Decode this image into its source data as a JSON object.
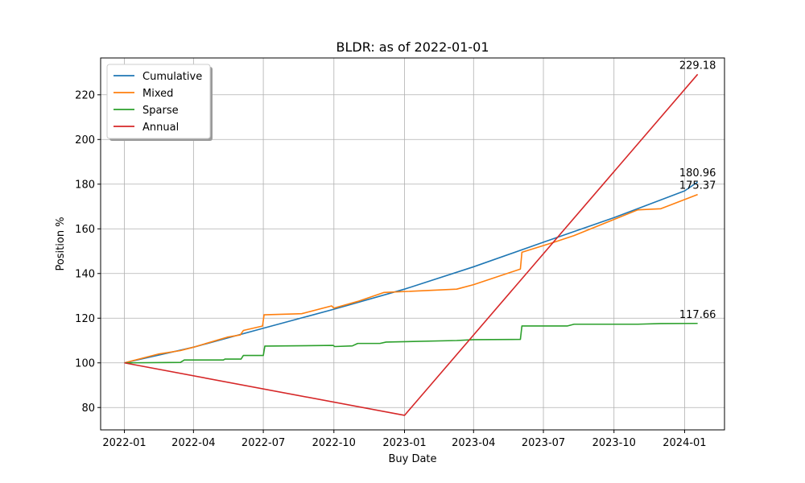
{
  "chart_data": {
    "type": "line",
    "title": "BLDR: as of 2022-01-01",
    "xlabel": "Buy Date",
    "ylabel": "Position %",
    "xlim": [
      "2021-12-01",
      "2024-02-22"
    ],
    "ylim": [
      70,
      236.5
    ],
    "x_ticks": [
      "2022-01",
      "2022-04",
      "2022-07",
      "2022-10",
      "2023-01",
      "2023-04",
      "2023-07",
      "2023-10",
      "2024-01"
    ],
    "y_ticks": [
      80,
      100,
      120,
      140,
      160,
      180,
      200,
      220
    ],
    "grid": true,
    "legend_position": "top-left",
    "series": [
      {
        "name": "Cumulative",
        "color": "#1f77b4",
        "points": [
          [
            "2022-01-01",
            100
          ],
          [
            "2022-04-01",
            107
          ],
          [
            "2022-07-01",
            115.5
          ],
          [
            "2022-10-01",
            124
          ],
          [
            "2023-01-01",
            133
          ],
          [
            "2023-04-01",
            143
          ],
          [
            "2023-07-01",
            154
          ],
          [
            "2023-10-01",
            165
          ],
          [
            "2024-01-01",
            177
          ],
          [
            "2024-01-18",
            180.96
          ]
        ],
        "end_label": "180.96"
      },
      {
        "name": "Mixed",
        "color": "#ff7f0e",
        "points": [
          [
            "2022-01-01",
            100
          ],
          [
            "2022-02-15",
            104
          ],
          [
            "2022-03-15",
            105.5
          ],
          [
            "2022-04-01",
            107
          ],
          [
            "2022-05-15",
            111.5
          ],
          [
            "2022-06-01",
            112.5
          ],
          [
            "2022-06-05",
            114.5
          ],
          [
            "2022-06-30",
            116.5
          ],
          [
            "2022-07-02",
            121.5
          ],
          [
            "2022-08-20",
            122
          ],
          [
            "2022-09-28",
            125.5
          ],
          [
            "2022-10-01",
            124.5
          ],
          [
            "2022-11-01",
            127.5
          ],
          [
            "2022-12-05",
            131.5
          ],
          [
            "2023-03-10",
            133
          ],
          [
            "2023-04-01",
            135
          ],
          [
            "2023-06-01",
            142
          ],
          [
            "2023-06-03",
            149.5
          ],
          [
            "2023-07-15",
            154
          ],
          [
            "2023-08-10",
            157
          ],
          [
            "2023-11-01",
            168.5
          ],
          [
            "2023-12-01",
            169
          ],
          [
            "2024-01-18",
            175.37
          ]
        ],
        "end_label": "175.37"
      },
      {
        "name": "Sparse",
        "color": "#2ca02c",
        "points": [
          [
            "2022-01-01",
            100
          ],
          [
            "2022-03-15",
            100.2
          ],
          [
            "2022-03-20",
            101.3
          ],
          [
            "2022-05-10",
            101.3
          ],
          [
            "2022-05-12",
            101.7
          ],
          [
            "2022-06-02",
            101.7
          ],
          [
            "2022-06-05",
            103.3
          ],
          [
            "2022-07-01",
            103.3
          ],
          [
            "2022-07-03",
            107.5
          ],
          [
            "2022-09-30",
            107.8
          ],
          [
            "2022-10-02",
            107.3
          ],
          [
            "2022-10-25",
            107.6
          ],
          [
            "2022-11-01",
            108.7
          ],
          [
            "2022-11-30",
            108.7
          ],
          [
            "2022-12-08",
            109.3
          ],
          [
            "2023-03-10",
            110
          ],
          [
            "2023-04-01",
            110.4
          ],
          [
            "2023-06-01",
            110.5
          ],
          [
            "2023-06-03",
            116.5
          ],
          [
            "2023-08-01",
            116.5
          ],
          [
            "2023-08-10",
            117.3
          ],
          [
            "2023-11-01",
            117.3
          ],
          [
            "2023-12-01",
            117.6
          ],
          [
            "2024-01-18",
            117.66
          ]
        ],
        "end_label": "117.66"
      },
      {
        "name": "Annual",
        "color": "#d62728",
        "points": [
          [
            "2022-01-01",
            100
          ],
          [
            "2023-01-01",
            76.5
          ],
          [
            "2024-01-18",
            229.18
          ]
        ],
        "end_label": "229.18"
      }
    ]
  }
}
